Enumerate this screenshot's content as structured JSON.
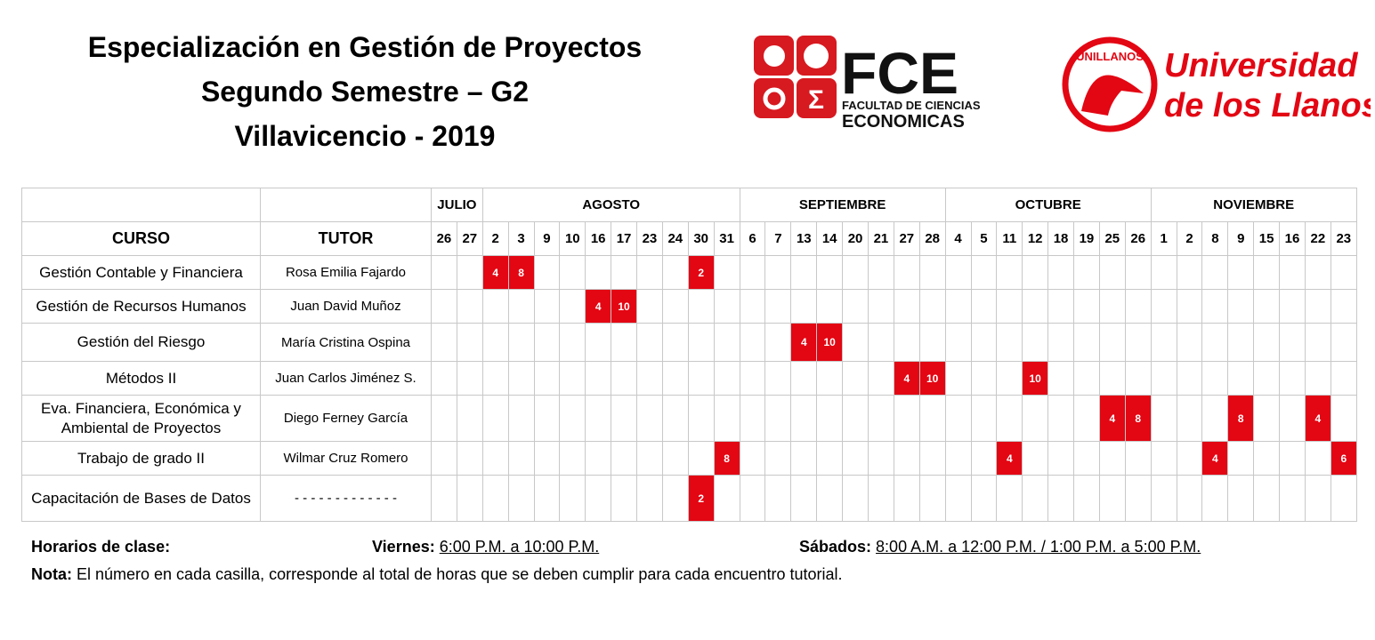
{
  "header": {
    "title_lines": [
      "Especialización en Gestión de Proyectos",
      "Segundo Semestre – G2",
      "Villavicencio - 2019"
    ]
  },
  "logos": {
    "fce": {
      "name": "FCE",
      "line1": "FACULTAD DE CIENCIAS",
      "line2": "ECONOMICAS"
    },
    "unillanos": {
      "seal": "UNILLANOS",
      "line1": "Universidad",
      "line2": "de los Llanos"
    }
  },
  "table": {
    "headers": [
      "CURSO",
      "TUTOR"
    ],
    "months": [
      {
        "name": "JULIO",
        "days": [
          26,
          27
        ]
      },
      {
        "name": "AGOSTO",
        "days": [
          2,
          3,
          9,
          10,
          16,
          17,
          23,
          24,
          30,
          31
        ]
      },
      {
        "name": "SEPTIEMBRE",
        "days": [
          6,
          7,
          13,
          14,
          20,
          21,
          27,
          28
        ]
      },
      {
        "name": "OCTUBRE",
        "days": [
          4,
          5,
          11,
          12,
          18,
          19,
          25,
          26
        ]
      },
      {
        "name": "NOVIEMBRE",
        "days": [
          1,
          2,
          8,
          9,
          15,
          16,
          22,
          23
        ]
      }
    ],
    "rows": [
      {
        "course": "Gestión Contable y Financiera",
        "tutor": "Rosa Emilia Fajardo",
        "cells": [
          null,
          null,
          4,
          8,
          null,
          null,
          null,
          null,
          null,
          null,
          2,
          null,
          null,
          null,
          null,
          null,
          null,
          null,
          null,
          null,
          null,
          null,
          null,
          null,
          null,
          null,
          null,
          null,
          null,
          null,
          null,
          null,
          null,
          null,
          null,
          null
        ]
      },
      {
        "course": "Gestión de Recursos Humanos",
        "tutor": "Juan David Muñoz",
        "cells": [
          null,
          null,
          null,
          null,
          null,
          null,
          4,
          10,
          null,
          null,
          null,
          null,
          null,
          null,
          null,
          null,
          null,
          null,
          null,
          null,
          null,
          null,
          null,
          null,
          null,
          null,
          null,
          null,
          null,
          null,
          null,
          null,
          null,
          null,
          null,
          null
        ]
      },
      {
        "course": "Gestión del Riesgo",
        "tutor": "María Cristina Ospina",
        "cells": [
          null,
          null,
          null,
          null,
          null,
          null,
          null,
          null,
          null,
          null,
          null,
          null,
          null,
          null,
          4,
          10,
          null,
          null,
          null,
          null,
          null,
          null,
          null,
          null,
          null,
          null,
          null,
          null,
          null,
          null,
          null,
          null,
          null,
          null,
          null,
          null
        ]
      },
      {
        "course": "Métodos II",
        "tutor": "Juan Carlos Jiménez S.",
        "cells": [
          null,
          null,
          null,
          null,
          null,
          null,
          null,
          null,
          null,
          null,
          null,
          null,
          null,
          null,
          null,
          null,
          null,
          null,
          4,
          10,
          null,
          null,
          null,
          10,
          null,
          null,
          null,
          null,
          null,
          null,
          null,
          null,
          null,
          null,
          null,
          null
        ]
      },
      {
        "course": "Eva. Financiera, Económica y Ambiental de Proyectos",
        "tutor": "Diego Ferney García",
        "cells": [
          null,
          null,
          null,
          null,
          null,
          null,
          null,
          null,
          null,
          null,
          null,
          null,
          null,
          null,
          null,
          null,
          null,
          null,
          null,
          null,
          null,
          null,
          null,
          null,
          null,
          null,
          4,
          8,
          null,
          null,
          null,
          8,
          null,
          null,
          4,
          null
        ]
      },
      {
        "course": "Trabajo de grado II",
        "tutor": "Wilmar Cruz Romero",
        "cells": [
          null,
          null,
          null,
          null,
          null,
          null,
          null,
          null,
          null,
          null,
          null,
          8,
          null,
          null,
          null,
          null,
          null,
          null,
          null,
          null,
          null,
          null,
          4,
          null,
          null,
          null,
          null,
          null,
          null,
          null,
          4,
          null,
          null,
          null,
          null,
          6
        ]
      },
      {
        "course": "Capacitación de Bases de Datos",
        "tutor": "- - - - - - - - - - - - -",
        "cells": [
          null,
          null,
          null,
          null,
          null,
          null,
          null,
          null,
          null,
          null,
          2,
          null,
          null,
          null,
          null,
          null,
          null,
          null,
          null,
          null,
          null,
          null,
          null,
          null,
          null,
          null,
          null,
          null,
          null,
          null,
          null,
          null,
          null,
          null,
          null,
          null
        ]
      }
    ]
  },
  "footer": {
    "schedule_label": "Horarios de clase:",
    "friday_label": "Viernes:",
    "friday_time": "6:00 P.M. a 10:00 P.M.",
    "saturday_label": "Sábados:",
    "saturday_time": "8:00 A.M. a 12:00 P.M. / 1:00 P.M. a 5:00 P.M.",
    "note_label": "Nota:",
    "note_text": " El número en cada casilla, corresponde al total de horas que se deben cumplir para cada encuentro tutorial."
  }
}
